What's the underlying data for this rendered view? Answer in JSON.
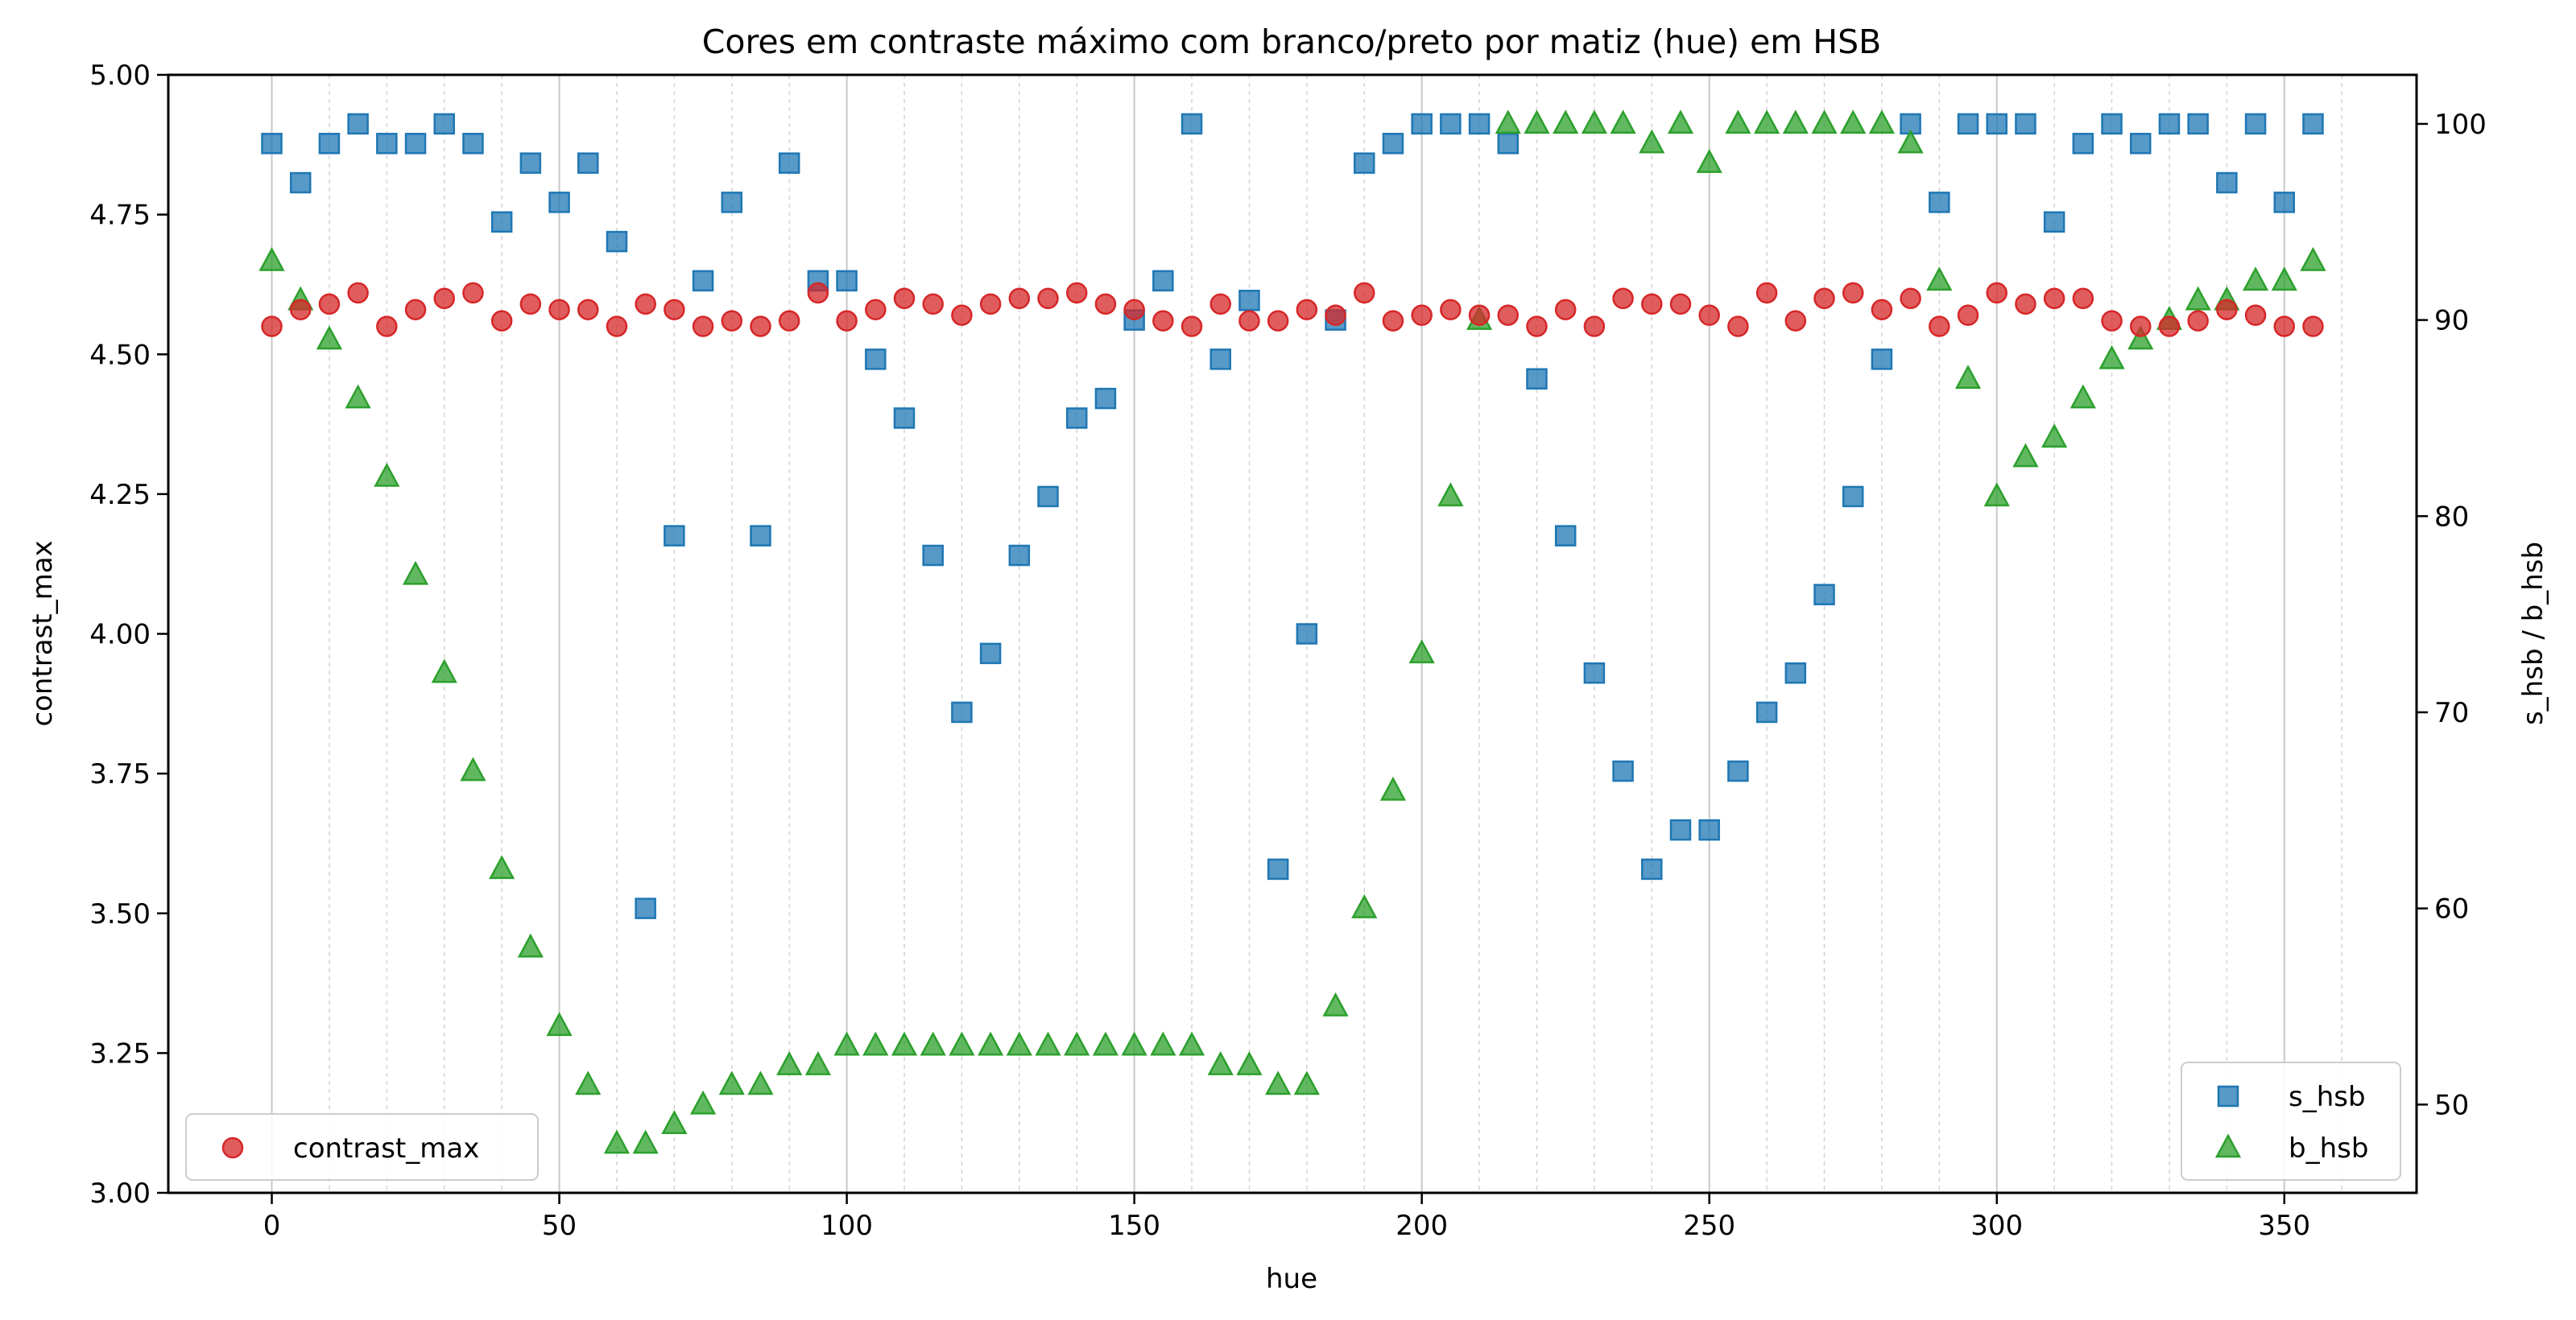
{
  "chart_data": {
    "type": "scatter",
    "title": "Cores em contraste máximo com branco/preto por matiz (hue) em HSB",
    "xlabel": "hue",
    "ylabel_left": "contrast_max",
    "ylabel_right": "s_hsb / b_hsb",
    "xlim": [
      -18,
      373
    ],
    "ylim_left": [
      3.0,
      5.0
    ],
    "ylim_right": [
      45.5,
      102.5
    ],
    "x_ticks": [
      0,
      50,
      100,
      150,
      200,
      250,
      300,
      350
    ],
    "x_tick_labels": [
      "0",
      "50",
      "100",
      "150",
      "200",
      "250",
      "300",
      "350"
    ],
    "y_left_ticks": [
      3.0,
      3.25,
      3.5,
      3.75,
      4.0,
      4.25,
      4.5,
      4.75,
      5.0
    ],
    "y_left_tick_labels": [
      "3.00",
      "3.25",
      "3.50",
      "3.75",
      "4.00",
      "4.25",
      "4.50",
      "4.75",
      "5.00"
    ],
    "y_right_ticks": [
      50,
      60,
      70,
      80,
      90,
      100
    ],
    "y_right_tick_labels": [
      "50",
      "60",
      "70",
      "80",
      "90",
      "100"
    ],
    "grid": {
      "x_major": true,
      "x_minor_every": 10
    },
    "x": [
      0,
      5,
      10,
      15,
      20,
      25,
      30,
      35,
      40,
      45,
      50,
      55,
      60,
      65,
      70,
      75,
      80,
      85,
      90,
      95,
      100,
      105,
      110,
      115,
      120,
      125,
      130,
      135,
      140,
      145,
      150,
      155,
      160,
      165,
      170,
      175,
      180,
      185,
      190,
      195,
      200,
      205,
      210,
      215,
      220,
      225,
      230,
      235,
      240,
      245,
      250,
      255,
      260,
      265,
      270,
      275,
      280,
      285,
      290,
      295,
      300,
      305,
      310,
      315,
      320,
      325,
      330,
      335,
      340,
      345,
      350,
      355
    ],
    "series": [
      {
        "name": "contrast_max",
        "axis": "left",
        "marker": "circle",
        "color": "#d62728",
        "values": [
          4.55,
          4.58,
          4.59,
          4.61,
          4.55,
          4.58,
          4.6,
          4.61,
          4.56,
          4.59,
          4.58,
          4.58,
          4.55,
          4.59,
          4.58,
          4.55,
          4.56,
          4.55,
          4.56,
          4.61,
          4.56,
          4.58,
          4.6,
          4.59,
          4.57,
          4.59,
          4.6,
          4.6,
          4.61,
          4.59,
          4.58,
          4.56,
          4.55,
          4.59,
          4.56,
          4.56,
          4.58,
          4.57,
          4.61,
          4.56,
          4.57,
          4.58,
          4.57,
          4.57,
          4.55,
          4.58,
          4.55,
          4.6,
          4.59,
          4.59,
          4.57,
          4.55,
          4.61,
          4.56,
          4.6,
          4.61,
          4.58,
          4.6,
          4.55,
          4.57,
          4.61,
          4.59,
          4.6,
          4.6,
          4.56,
          4.55,
          4.55,
          4.56,
          4.58,
          4.57,
          4.55,
          4.55
        ]
      },
      {
        "name": "s_hsb",
        "axis": "right",
        "marker": "square",
        "color": "#1f77b4",
        "values": [
          99,
          97,
          99,
          100,
          99,
          99,
          100,
          99,
          95,
          98,
          96,
          98,
          94,
          60,
          79,
          92,
          96,
          79,
          98,
          92,
          92,
          88,
          85,
          78,
          70,
          73,
          78,
          81,
          85,
          86,
          90,
          92,
          100,
          88,
          91,
          62,
          74,
          90,
          98,
          99,
          100,
          100,
          100,
          99,
          87,
          79,
          72,
          67,
          62,
          64,
          64,
          67,
          70,
          72,
          76,
          81,
          88,
          100,
          96,
          100,
          100,
          100,
          95,
          99,
          100,
          99,
          100,
          100,
          97,
          100,
          96,
          100
        ]
      },
      {
        "name": "b_hsb",
        "axis": "right",
        "marker": "triangle",
        "color": "#2ca02c",
        "values": [
          93,
          91,
          89,
          86,
          82,
          77,
          72,
          67,
          62,
          58,
          54,
          51,
          48,
          48,
          49,
          50,
          51,
          51,
          52,
          52,
          53,
          53,
          53,
          53,
          53,
          53,
          53,
          53,
          53,
          53,
          53,
          53,
          53,
          52,
          52,
          51,
          51,
          55,
          60,
          66,
          73,
          81,
          90,
          100,
          100,
          100,
          100,
          100,
          99,
          100,
          98,
          100,
          100,
          100,
          100,
          100,
          100,
          99,
          92,
          87,
          81,
          83,
          84,
          86,
          88,
          89,
          90,
          91,
          91,
          92,
          92,
          93
        ]
      }
    ],
    "legends": [
      {
        "position": "lower-left",
        "entries": [
          "contrast_max"
        ]
      },
      {
        "position": "lower-right",
        "entries": [
          "s_hsb",
          "b_hsb"
        ]
      }
    ]
  }
}
